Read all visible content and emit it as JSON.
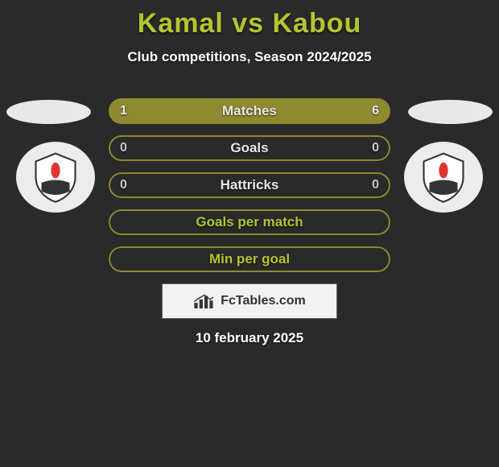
{
  "title": "Kamal vs Kabou",
  "title_color": "#b3c62f",
  "subtitle": "Club competitions, Season 2024/2025",
  "date": "10 february 2025",
  "logo_text": "FcTables.com",
  "player_left": {
    "flag_color": "#e8e8e8",
    "badge_bg": "#ececec"
  },
  "player_right": {
    "flag_color": "#e8e8e8",
    "badge_bg": "#ececec"
  },
  "bars": [
    {
      "label": "Matches",
      "left_value": "1",
      "right_value": "6",
      "left_pct": 14.3,
      "right_pct": 85.7,
      "fill_color": "#8e8a30",
      "border_color": "#8e8a30",
      "label_color": "#e8e8e8",
      "value_color": "#e8e8e8"
    },
    {
      "label": "Goals",
      "left_value": "0",
      "right_value": "0",
      "left_pct": 0,
      "right_pct": 0,
      "fill_color": "#8e8a30",
      "border_color": "#8e8a30",
      "label_color": "#e8e8e8",
      "value_color": "#c8c8c8"
    },
    {
      "label": "Hattricks",
      "left_value": "0",
      "right_value": "0",
      "left_pct": 0,
      "right_pct": 0,
      "fill_color": "#8e8a30",
      "border_color": "#8e8a30",
      "label_color": "#e8e8e8",
      "value_color": "#c8c8c8"
    },
    {
      "label": "Goals per match",
      "left_value": "",
      "right_value": "",
      "left_pct": 0,
      "right_pct": 0,
      "fill_color": "#8e8a30",
      "border_color": "#8e8a30",
      "label_color": "#b3c62f",
      "value_color": "#e8e8e8"
    },
    {
      "label": "Min per goal",
      "left_value": "",
      "right_value": "",
      "left_pct": 0,
      "right_pct": 0,
      "fill_color": "#8e8a30",
      "border_color": "#8e8a30",
      "label_color": "#b3c62f",
      "value_color": "#e8e8e8"
    }
  ],
  "background_color": "#2a2a2a"
}
